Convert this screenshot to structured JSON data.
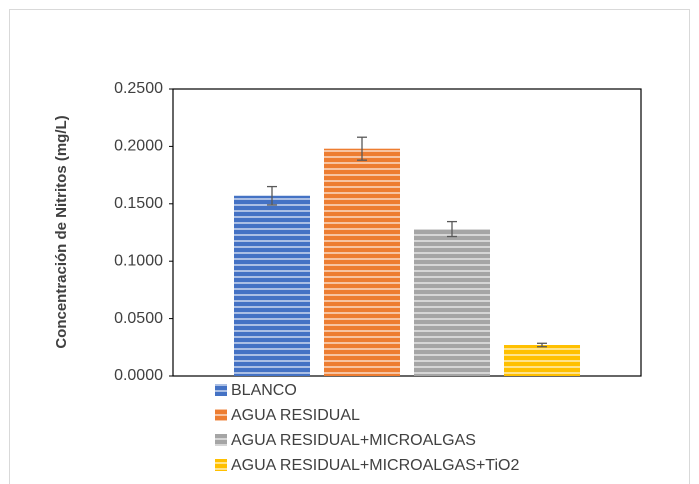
{
  "chart_data": {
    "type": "bar",
    "y_label": "Concentración de Nitritos (mg/L)",
    "ylim": [
      0,
      0.25
    ],
    "yticks": [
      {
        "value": 0,
        "label": "0.0000"
      },
      {
        "value": 0.05,
        "label": "0.0500"
      },
      {
        "value": 0.1,
        "label": "0.1000"
      },
      {
        "value": 0.15,
        "label": "0.1500"
      },
      {
        "value": 0.2,
        "label": "0.2000"
      },
      {
        "value": 0.25,
        "label": "0.2500"
      }
    ],
    "series": [
      {
        "name": "BLANCO",
        "color": "#4472c4",
        "values": [
          0.157
        ],
        "errors": [
          0.008
        ]
      },
      {
        "name": "AGUA RESIDUAL",
        "color": "#ed7d31",
        "values": [
          0.198
        ],
        "errors": [
          0.01
        ]
      },
      {
        "name": "AGUA RESIDUAL+MICROALGAS",
        "color": "#a5a5a5",
        "values": [
          0.128
        ],
        "errors": [
          0.0065
        ]
      },
      {
        "name": "AGUA RESIDUAL+MICROALGAS+TiO2",
        "color": "#ffc000",
        "values": [
          0.027
        ],
        "errors": [
          0.0015
        ]
      }
    ]
  }
}
